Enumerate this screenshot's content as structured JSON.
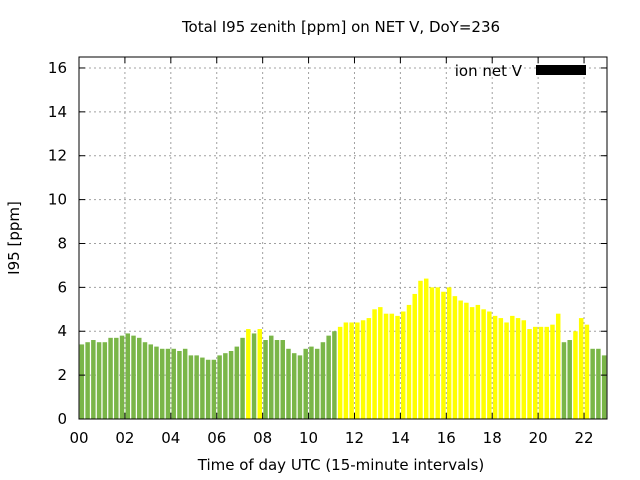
{
  "chart_data": {
    "type": "bar",
    "title": "Total I95 zenith [ppm] on NET V, DoY=236",
    "xlabel": "Time of day UTC (15-minute intervals)",
    "ylabel": "I95 [ppm]",
    "xlim": [
      0,
      23
    ],
    "ylim": [
      0,
      16.5
    ],
    "x_ticks": [
      "00",
      "02",
      "04",
      "06",
      "08",
      "10",
      "12",
      "14",
      "16",
      "18",
      "20",
      "22"
    ],
    "y_ticks": [
      "0",
      "2",
      "4",
      "6",
      "8",
      "10",
      "12",
      "14",
      "16"
    ],
    "grid": true,
    "legend": {
      "position": "top-right",
      "entries": [
        {
          "label": "ion net V",
          "color": "#000000"
        }
      ]
    },
    "colors": {
      "green": "#7ab648",
      "yellow": "#ffff00"
    },
    "bar_interval_hours": 0.25,
    "bars": [
      {
        "x": 0.125,
        "value": 3.4,
        "color": "green"
      },
      {
        "x": 0.375,
        "value": 3.5,
        "color": "green"
      },
      {
        "x": 0.625,
        "value": 3.6,
        "color": "green"
      },
      {
        "x": 0.875,
        "value": 3.5,
        "color": "green"
      },
      {
        "x": 1.125,
        "value": 3.5,
        "color": "green"
      },
      {
        "x": 1.375,
        "value": 3.7,
        "color": "green"
      },
      {
        "x": 1.625,
        "value": 3.7,
        "color": "green"
      },
      {
        "x": 1.875,
        "value": 3.8,
        "color": "green"
      },
      {
        "x": 2.125,
        "value": 3.9,
        "color": "green"
      },
      {
        "x": 2.375,
        "value": 3.8,
        "color": "green"
      },
      {
        "x": 2.625,
        "value": 3.7,
        "color": "green"
      },
      {
        "x": 2.875,
        "value": 3.5,
        "color": "green"
      },
      {
        "x": 3.125,
        "value": 3.4,
        "color": "green"
      },
      {
        "x": 3.375,
        "value": 3.3,
        "color": "green"
      },
      {
        "x": 3.625,
        "value": 3.2,
        "color": "green"
      },
      {
        "x": 3.875,
        "value": 3.2,
        "color": "green"
      },
      {
        "x": 4.125,
        "value": 3.2,
        "color": "green"
      },
      {
        "x": 4.375,
        "value": 3.1,
        "color": "green"
      },
      {
        "x": 4.625,
        "value": 3.2,
        "color": "green"
      },
      {
        "x": 4.875,
        "value": 2.9,
        "color": "green"
      },
      {
        "x": 5.125,
        "value": 2.9,
        "color": "green"
      },
      {
        "x": 5.375,
        "value": 2.8,
        "color": "green"
      },
      {
        "x": 5.625,
        "value": 2.7,
        "color": "green"
      },
      {
        "x": 5.875,
        "value": 2.7,
        "color": "green"
      },
      {
        "x": 6.125,
        "value": 2.9,
        "color": "green"
      },
      {
        "x": 6.375,
        "value": 3.0,
        "color": "green"
      },
      {
        "x": 6.625,
        "value": 3.1,
        "color": "green"
      },
      {
        "x": 6.875,
        "value": 3.3,
        "color": "green"
      },
      {
        "x": 7.125,
        "value": 3.7,
        "color": "green"
      },
      {
        "x": 7.375,
        "value": 4.1,
        "color": "yellow"
      },
      {
        "x": 7.625,
        "value": 3.9,
        "color": "green"
      },
      {
        "x": 7.875,
        "value": 4.1,
        "color": "yellow"
      },
      {
        "x": 8.125,
        "value": 3.6,
        "color": "green"
      },
      {
        "x": 8.375,
        "value": 3.8,
        "color": "green"
      },
      {
        "x": 8.625,
        "value": 3.6,
        "color": "green"
      },
      {
        "x": 8.875,
        "value": 3.6,
        "color": "green"
      },
      {
        "x": 9.125,
        "value": 3.2,
        "color": "green"
      },
      {
        "x": 9.375,
        "value": 3.0,
        "color": "green"
      },
      {
        "x": 9.625,
        "value": 2.9,
        "color": "green"
      },
      {
        "x": 9.875,
        "value": 3.2,
        "color": "green"
      },
      {
        "x": 10.125,
        "value": 3.3,
        "color": "green"
      },
      {
        "x": 10.375,
        "value": 3.2,
        "color": "green"
      },
      {
        "x": 10.625,
        "value": 3.5,
        "color": "green"
      },
      {
        "x": 10.875,
        "value": 3.8,
        "color": "green"
      },
      {
        "x": 11.125,
        "value": 4.0,
        "color": "green"
      },
      {
        "x": 11.375,
        "value": 4.2,
        "color": "yellow"
      },
      {
        "x": 11.625,
        "value": 4.4,
        "color": "yellow"
      },
      {
        "x": 11.875,
        "value": 4.4,
        "color": "yellow"
      },
      {
        "x": 12.125,
        "value": 4.4,
        "color": "yellow"
      },
      {
        "x": 12.375,
        "value": 4.5,
        "color": "yellow"
      },
      {
        "x": 12.625,
        "value": 4.6,
        "color": "yellow"
      },
      {
        "x": 12.875,
        "value": 5.0,
        "color": "yellow"
      },
      {
        "x": 13.125,
        "value": 5.1,
        "color": "yellow"
      },
      {
        "x": 13.375,
        "value": 4.8,
        "color": "yellow"
      },
      {
        "x": 13.625,
        "value": 4.8,
        "color": "yellow"
      },
      {
        "x": 13.875,
        "value": 4.7,
        "color": "yellow"
      },
      {
        "x": 14.125,
        "value": 4.9,
        "color": "yellow"
      },
      {
        "x": 14.375,
        "value": 5.2,
        "color": "yellow"
      },
      {
        "x": 14.625,
        "value": 5.7,
        "color": "yellow"
      },
      {
        "x": 14.875,
        "value": 6.3,
        "color": "yellow"
      },
      {
        "x": 15.125,
        "value": 6.4,
        "color": "yellow"
      },
      {
        "x": 15.375,
        "value": 6.0,
        "color": "yellow"
      },
      {
        "x": 15.625,
        "value": 6.0,
        "color": "yellow"
      },
      {
        "x": 15.875,
        "value": 5.8,
        "color": "yellow"
      },
      {
        "x": 16.125,
        "value": 6.0,
        "color": "yellow"
      },
      {
        "x": 16.375,
        "value": 5.6,
        "color": "yellow"
      },
      {
        "x": 16.625,
        "value": 5.4,
        "color": "yellow"
      },
      {
        "x": 16.875,
        "value": 5.3,
        "color": "yellow"
      },
      {
        "x": 17.125,
        "value": 5.1,
        "color": "yellow"
      },
      {
        "x": 17.375,
        "value": 5.2,
        "color": "yellow"
      },
      {
        "x": 17.625,
        "value": 5.0,
        "color": "yellow"
      },
      {
        "x": 17.875,
        "value": 4.9,
        "color": "yellow"
      },
      {
        "x": 18.125,
        "value": 4.7,
        "color": "yellow"
      },
      {
        "x": 18.375,
        "value": 4.6,
        "color": "yellow"
      },
      {
        "x": 18.625,
        "value": 4.4,
        "color": "yellow"
      },
      {
        "x": 18.875,
        "value": 4.7,
        "color": "yellow"
      },
      {
        "x": 19.125,
        "value": 4.6,
        "color": "yellow"
      },
      {
        "x": 19.375,
        "value": 4.5,
        "color": "yellow"
      },
      {
        "x": 19.625,
        "value": 4.1,
        "color": "yellow"
      },
      {
        "x": 19.875,
        "value": 4.2,
        "color": "yellow"
      },
      {
        "x": 20.125,
        "value": 4.2,
        "color": "yellow"
      },
      {
        "x": 20.375,
        "value": 4.2,
        "color": "yellow"
      },
      {
        "x": 20.625,
        "value": 4.3,
        "color": "yellow"
      },
      {
        "x": 20.875,
        "value": 4.8,
        "color": "yellow"
      },
      {
        "x": 21.125,
        "value": 3.5,
        "color": "green"
      },
      {
        "x": 21.375,
        "value": 3.6,
        "color": "green"
      },
      {
        "x": 21.625,
        "value": 4.0,
        "color": "yellow"
      },
      {
        "x": 21.875,
        "value": 4.6,
        "color": "yellow"
      },
      {
        "x": 22.125,
        "value": 4.3,
        "color": "yellow"
      },
      {
        "x": 22.375,
        "value": 3.2,
        "color": "green"
      },
      {
        "x": 22.625,
        "value": 3.2,
        "color": "green"
      },
      {
        "x": 22.875,
        "value": 2.9,
        "color": "green"
      }
    ]
  }
}
